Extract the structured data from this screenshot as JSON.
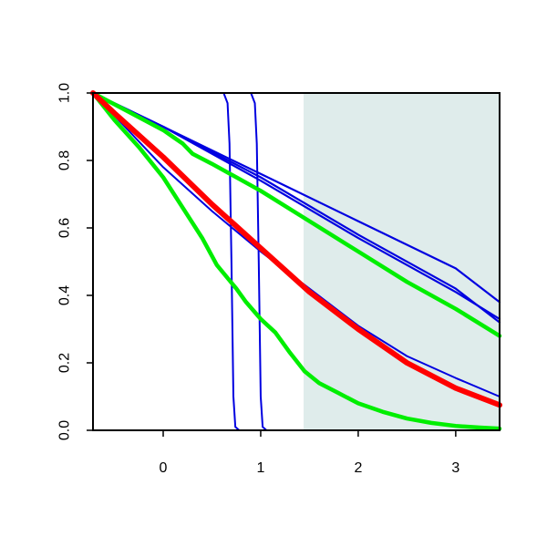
{
  "chart_data": {
    "type": "line",
    "title": "",
    "xlabel": "",
    "ylabel": "",
    "xlim": [
      -0.72,
      3.45
    ],
    "ylim": [
      0,
      1
    ],
    "x_ticks": [
      0,
      1,
      2,
      3
    ],
    "y_ticks": [
      0.0,
      0.2,
      0.4,
      0.6,
      0.8,
      1.0
    ],
    "x_tick_labels": [
      "0",
      "1",
      "2",
      "3"
    ],
    "y_tick_labels": [
      "0.0",
      "0.2",
      "0.4",
      "0.6",
      "0.8",
      "1.0"
    ],
    "grid": false,
    "legend": "none",
    "shaded_region": {
      "x_start": 1.44,
      "x_end": 3.45,
      "color": "#dfeceb"
    },
    "series": [
      {
        "color": "#0000e0",
        "stroke": 2.2,
        "points": [
          [
            -0.72,
            1.0
          ],
          [
            0.0,
            0.9
          ],
          [
            1.0,
            0.76
          ],
          [
            2.0,
            0.62
          ],
          [
            3.0,
            0.48
          ],
          [
            3.45,
            0.38
          ]
        ]
      },
      {
        "color": "#0000e0",
        "stroke": 2.2,
        "points": [
          [
            -0.72,
            1.0
          ],
          [
            0.0,
            0.9
          ],
          [
            1.0,
            0.75
          ],
          [
            2.0,
            0.58
          ],
          [
            3.0,
            0.42
          ],
          [
            3.45,
            0.32
          ]
        ]
      },
      {
        "color": "#0000e0",
        "stroke": 2.2,
        "points": [
          [
            -0.72,
            1.0
          ],
          [
            0.0,
            0.9
          ],
          [
            1.0,
            0.74
          ],
          [
            2.0,
            0.57
          ],
          [
            3.0,
            0.41
          ],
          [
            3.45,
            0.33
          ]
        ]
      },
      {
        "color": "#0000e0",
        "stroke": 2.0,
        "points": [
          [
            -0.72,
            1.0
          ],
          [
            0.0,
            0.78
          ],
          [
            0.5,
            0.65
          ],
          [
            1.0,
            0.53
          ],
          [
            1.5,
            0.42
          ],
          [
            2.0,
            0.31
          ],
          [
            2.5,
            0.22
          ],
          [
            3.0,
            0.155
          ],
          [
            3.45,
            0.1
          ]
        ]
      },
      {
        "color": "#0000e0",
        "stroke": 2.0,
        "points": [
          [
            -0.72,
            1.0
          ],
          [
            0.62,
            1.0
          ],
          [
            0.66,
            0.97
          ],
          [
            0.68,
            0.85
          ],
          [
            0.7,
            0.5
          ],
          [
            0.72,
            0.1
          ],
          [
            0.74,
            0.01
          ],
          [
            0.78,
            0.0
          ],
          [
            3.45,
            0.0
          ]
        ]
      },
      {
        "color": "#0000e0",
        "stroke": 2.0,
        "points": [
          [
            -0.72,
            1.0
          ],
          [
            0.9,
            1.0
          ],
          [
            0.94,
            0.97
          ],
          [
            0.96,
            0.85
          ],
          [
            0.98,
            0.5
          ],
          [
            1.0,
            0.1
          ],
          [
            1.02,
            0.01
          ],
          [
            1.06,
            0.0
          ],
          [
            3.45,
            0.0
          ]
        ]
      },
      {
        "color": "#00ee00",
        "stroke": 4.5,
        "points": [
          [
            -0.72,
            1.0
          ],
          [
            0.0,
            0.89
          ],
          [
            0.1,
            0.87
          ],
          [
            0.2,
            0.85
          ],
          [
            0.3,
            0.82
          ],
          [
            0.5,
            0.79
          ],
          [
            1.0,
            0.71
          ],
          [
            1.5,
            0.62
          ],
          [
            2.0,
            0.53
          ],
          [
            2.5,
            0.44
          ],
          [
            3.0,
            0.36
          ],
          [
            3.45,
            0.28
          ]
        ]
      },
      {
        "color": "#00ee00",
        "stroke": 4.5,
        "points": [
          [
            -0.72,
            1.0
          ],
          [
            -0.5,
            0.92
          ],
          [
            -0.25,
            0.84
          ],
          [
            0.0,
            0.75
          ],
          [
            0.2,
            0.66
          ],
          [
            0.4,
            0.57
          ],
          [
            0.55,
            0.49
          ],
          [
            0.75,
            0.42
          ],
          [
            0.85,
            0.38
          ],
          [
            1.0,
            0.33
          ],
          [
            1.15,
            0.29
          ],
          [
            1.3,
            0.23
          ],
          [
            1.45,
            0.175
          ],
          [
            1.6,
            0.14
          ],
          [
            1.8,
            0.11
          ],
          [
            2.0,
            0.08
          ],
          [
            2.25,
            0.055
          ],
          [
            2.5,
            0.035
          ],
          [
            2.75,
            0.022
          ],
          [
            3.0,
            0.013
          ],
          [
            3.25,
            0.008
          ],
          [
            3.45,
            0.005
          ]
        ]
      },
      {
        "color": "#ff0000",
        "stroke": 6,
        "points": [
          [
            -0.72,
            1.0
          ],
          [
            -0.5,
            0.94
          ],
          [
            0.0,
            0.81
          ],
          [
            0.5,
            0.67
          ],
          [
            1.0,
            0.54
          ],
          [
            1.5,
            0.41
          ],
          [
            2.0,
            0.3
          ],
          [
            2.5,
            0.2
          ],
          [
            3.0,
            0.125
          ],
          [
            3.45,
            0.075
          ]
        ]
      }
    ]
  }
}
